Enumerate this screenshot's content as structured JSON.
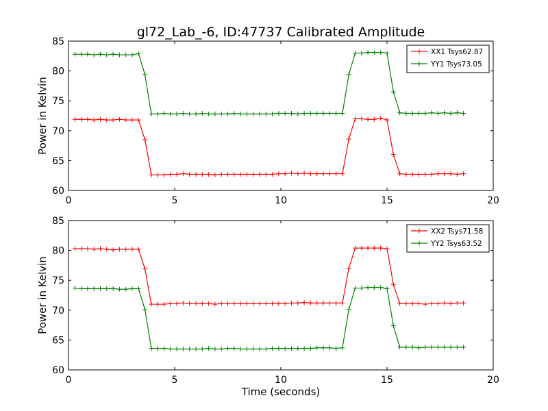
{
  "figure_title": "gl72_Lab_-6, ID:47737 Calibrated Amplitude",
  "chart_data": [
    {
      "type": "line",
      "title": "gl72_Lab_-6, ID:47737 Calibrated Amplitude",
      "xlabel": "",
      "ylabel": "Power in Kelvin",
      "xlim": [
        0,
        20
      ],
      "ylim": [
        60,
        85
      ],
      "xticks": [
        0,
        5,
        10,
        15,
        20
      ],
      "yticks": [
        60,
        65,
        70,
        75,
        80,
        85
      ],
      "grid": false,
      "legend_position": "top-right",
      "x": [
        0.3,
        0.6,
        0.9,
        1.2,
        1.5,
        1.8,
        2.1,
        2.4,
        2.7,
        3.0,
        3.3,
        3.6,
        3.9,
        4.2,
        4.5,
        4.8,
        5.1,
        5.4,
        5.7,
        6.0,
        6.3,
        6.6,
        6.9,
        7.2,
        7.5,
        7.8,
        8.1,
        8.4,
        8.7,
        9.0,
        9.3,
        9.6,
        9.9,
        10.2,
        10.5,
        10.8,
        11.1,
        11.4,
        11.7,
        12.0,
        12.3,
        12.6,
        12.9,
        13.2,
        13.5,
        13.8,
        14.1,
        14.4,
        14.7,
        15.0,
        15.3,
        15.6,
        15.9,
        16.2,
        16.5,
        16.8,
        17.1,
        17.4,
        17.7,
        18.0,
        18.3,
        18.6
      ],
      "series": [
        {
          "name": "XX1 Tsys62.87",
          "color": "#ff0000",
          "values": [
            71.9,
            71.9,
            71.9,
            71.8,
            71.9,
            71.8,
            71.8,
            71.9,
            71.8,
            71.8,
            71.8,
            68.5,
            62.6,
            62.6,
            62.6,
            62.7,
            62.7,
            62.8,
            62.7,
            62.7,
            62.7,
            62.7,
            62.6,
            62.7,
            62.7,
            62.7,
            62.7,
            62.7,
            62.7,
            62.7,
            62.7,
            62.7,
            62.8,
            62.8,
            62.9,
            62.8,
            62.9,
            62.8,
            62.8,
            62.8,
            62.8,
            62.8,
            62.8,
            68.6,
            72.0,
            72.0,
            71.9,
            71.9,
            72.1,
            71.8,
            66.0,
            62.8,
            62.7,
            62.7,
            62.7,
            62.7,
            62.7,
            62.8,
            62.8,
            62.8,
            62.7,
            62.8
          ]
        },
        {
          "name": "YY1 Tsys73.05",
          "color": "#008000",
          "values": [
            82.8,
            82.8,
            82.8,
            82.7,
            82.8,
            82.7,
            82.8,
            82.7,
            82.7,
            82.7,
            82.9,
            79.4,
            72.8,
            72.8,
            72.9,
            72.8,
            72.8,
            72.9,
            72.8,
            72.8,
            72.9,
            72.8,
            72.8,
            72.8,
            72.8,
            72.9,
            72.8,
            72.8,
            72.8,
            72.8,
            72.8,
            72.8,
            72.9,
            72.9,
            72.9,
            72.8,
            72.9,
            72.9,
            72.9,
            72.9,
            72.9,
            72.9,
            72.9,
            79.4,
            83.0,
            83.0,
            83.1,
            83.1,
            83.1,
            83.0,
            76.5,
            73.0,
            72.9,
            72.9,
            72.9,
            72.9,
            73.0,
            72.9,
            73.0,
            72.9,
            73.0,
            72.9
          ]
        }
      ]
    },
    {
      "type": "line",
      "title": "",
      "xlabel": "Time (seconds)",
      "ylabel": "Power in Kelvin",
      "xlim": [
        0,
        20
      ],
      "ylim": [
        60,
        85
      ],
      "xticks": [
        0,
        5,
        10,
        15,
        20
      ],
      "yticks": [
        60,
        65,
        70,
        75,
        80,
        85
      ],
      "grid": false,
      "legend_position": "top-right",
      "x": [
        0.3,
        0.6,
        0.9,
        1.2,
        1.5,
        1.8,
        2.1,
        2.4,
        2.7,
        3.0,
        3.3,
        3.6,
        3.9,
        4.2,
        4.5,
        4.8,
        5.1,
        5.4,
        5.7,
        6.0,
        6.3,
        6.6,
        6.9,
        7.2,
        7.5,
        7.8,
        8.1,
        8.4,
        8.7,
        9.0,
        9.3,
        9.6,
        9.9,
        10.2,
        10.5,
        10.8,
        11.1,
        11.4,
        11.7,
        12.0,
        12.3,
        12.6,
        12.9,
        13.2,
        13.5,
        13.8,
        14.1,
        14.4,
        14.7,
        15.0,
        15.3,
        15.6,
        15.9,
        16.2,
        16.5,
        16.8,
        17.1,
        17.4,
        17.7,
        18.0,
        18.3,
        18.6
      ],
      "series": [
        {
          "name": "XX2 Tsys71.58",
          "color": "#ff0000",
          "values": [
            80.3,
            80.3,
            80.3,
            80.2,
            80.3,
            80.2,
            80.1,
            80.2,
            80.2,
            80.2,
            80.2,
            76.9,
            71.0,
            71.0,
            71.0,
            71.1,
            71.1,
            71.2,
            71.1,
            71.1,
            71.1,
            71.1,
            71.0,
            71.1,
            71.1,
            71.1,
            71.1,
            71.1,
            71.1,
            71.1,
            71.1,
            71.1,
            71.1,
            71.1,
            71.2,
            71.2,
            71.3,
            71.2,
            71.2,
            71.2,
            71.2,
            71.2,
            71.2,
            77.0,
            80.4,
            80.4,
            80.4,
            80.4,
            80.4,
            80.3,
            74.3,
            71.1,
            71.1,
            71.1,
            71.1,
            71.0,
            71.1,
            71.1,
            71.2,
            71.1,
            71.2,
            71.2
          ]
        },
        {
          "name": "YY2 Tsys63.52",
          "color": "#008000",
          "values": [
            73.7,
            73.6,
            73.6,
            73.6,
            73.6,
            73.6,
            73.6,
            73.5,
            73.5,
            73.6,
            73.6,
            70.1,
            63.6,
            63.6,
            63.6,
            63.5,
            63.5,
            63.5,
            63.5,
            63.5,
            63.5,
            63.6,
            63.5,
            63.5,
            63.6,
            63.6,
            63.5,
            63.5,
            63.5,
            63.5,
            63.5,
            63.6,
            63.6,
            63.6,
            63.6,
            63.6,
            63.6,
            63.6,
            63.7,
            63.7,
            63.7,
            63.6,
            63.7,
            70.1,
            73.7,
            73.7,
            73.8,
            73.8,
            73.8,
            73.6,
            67.4,
            63.8,
            63.8,
            63.8,
            63.7,
            63.8,
            63.8,
            63.8,
            63.8,
            63.8,
            63.8,
            63.8
          ]
        }
      ]
    }
  ]
}
